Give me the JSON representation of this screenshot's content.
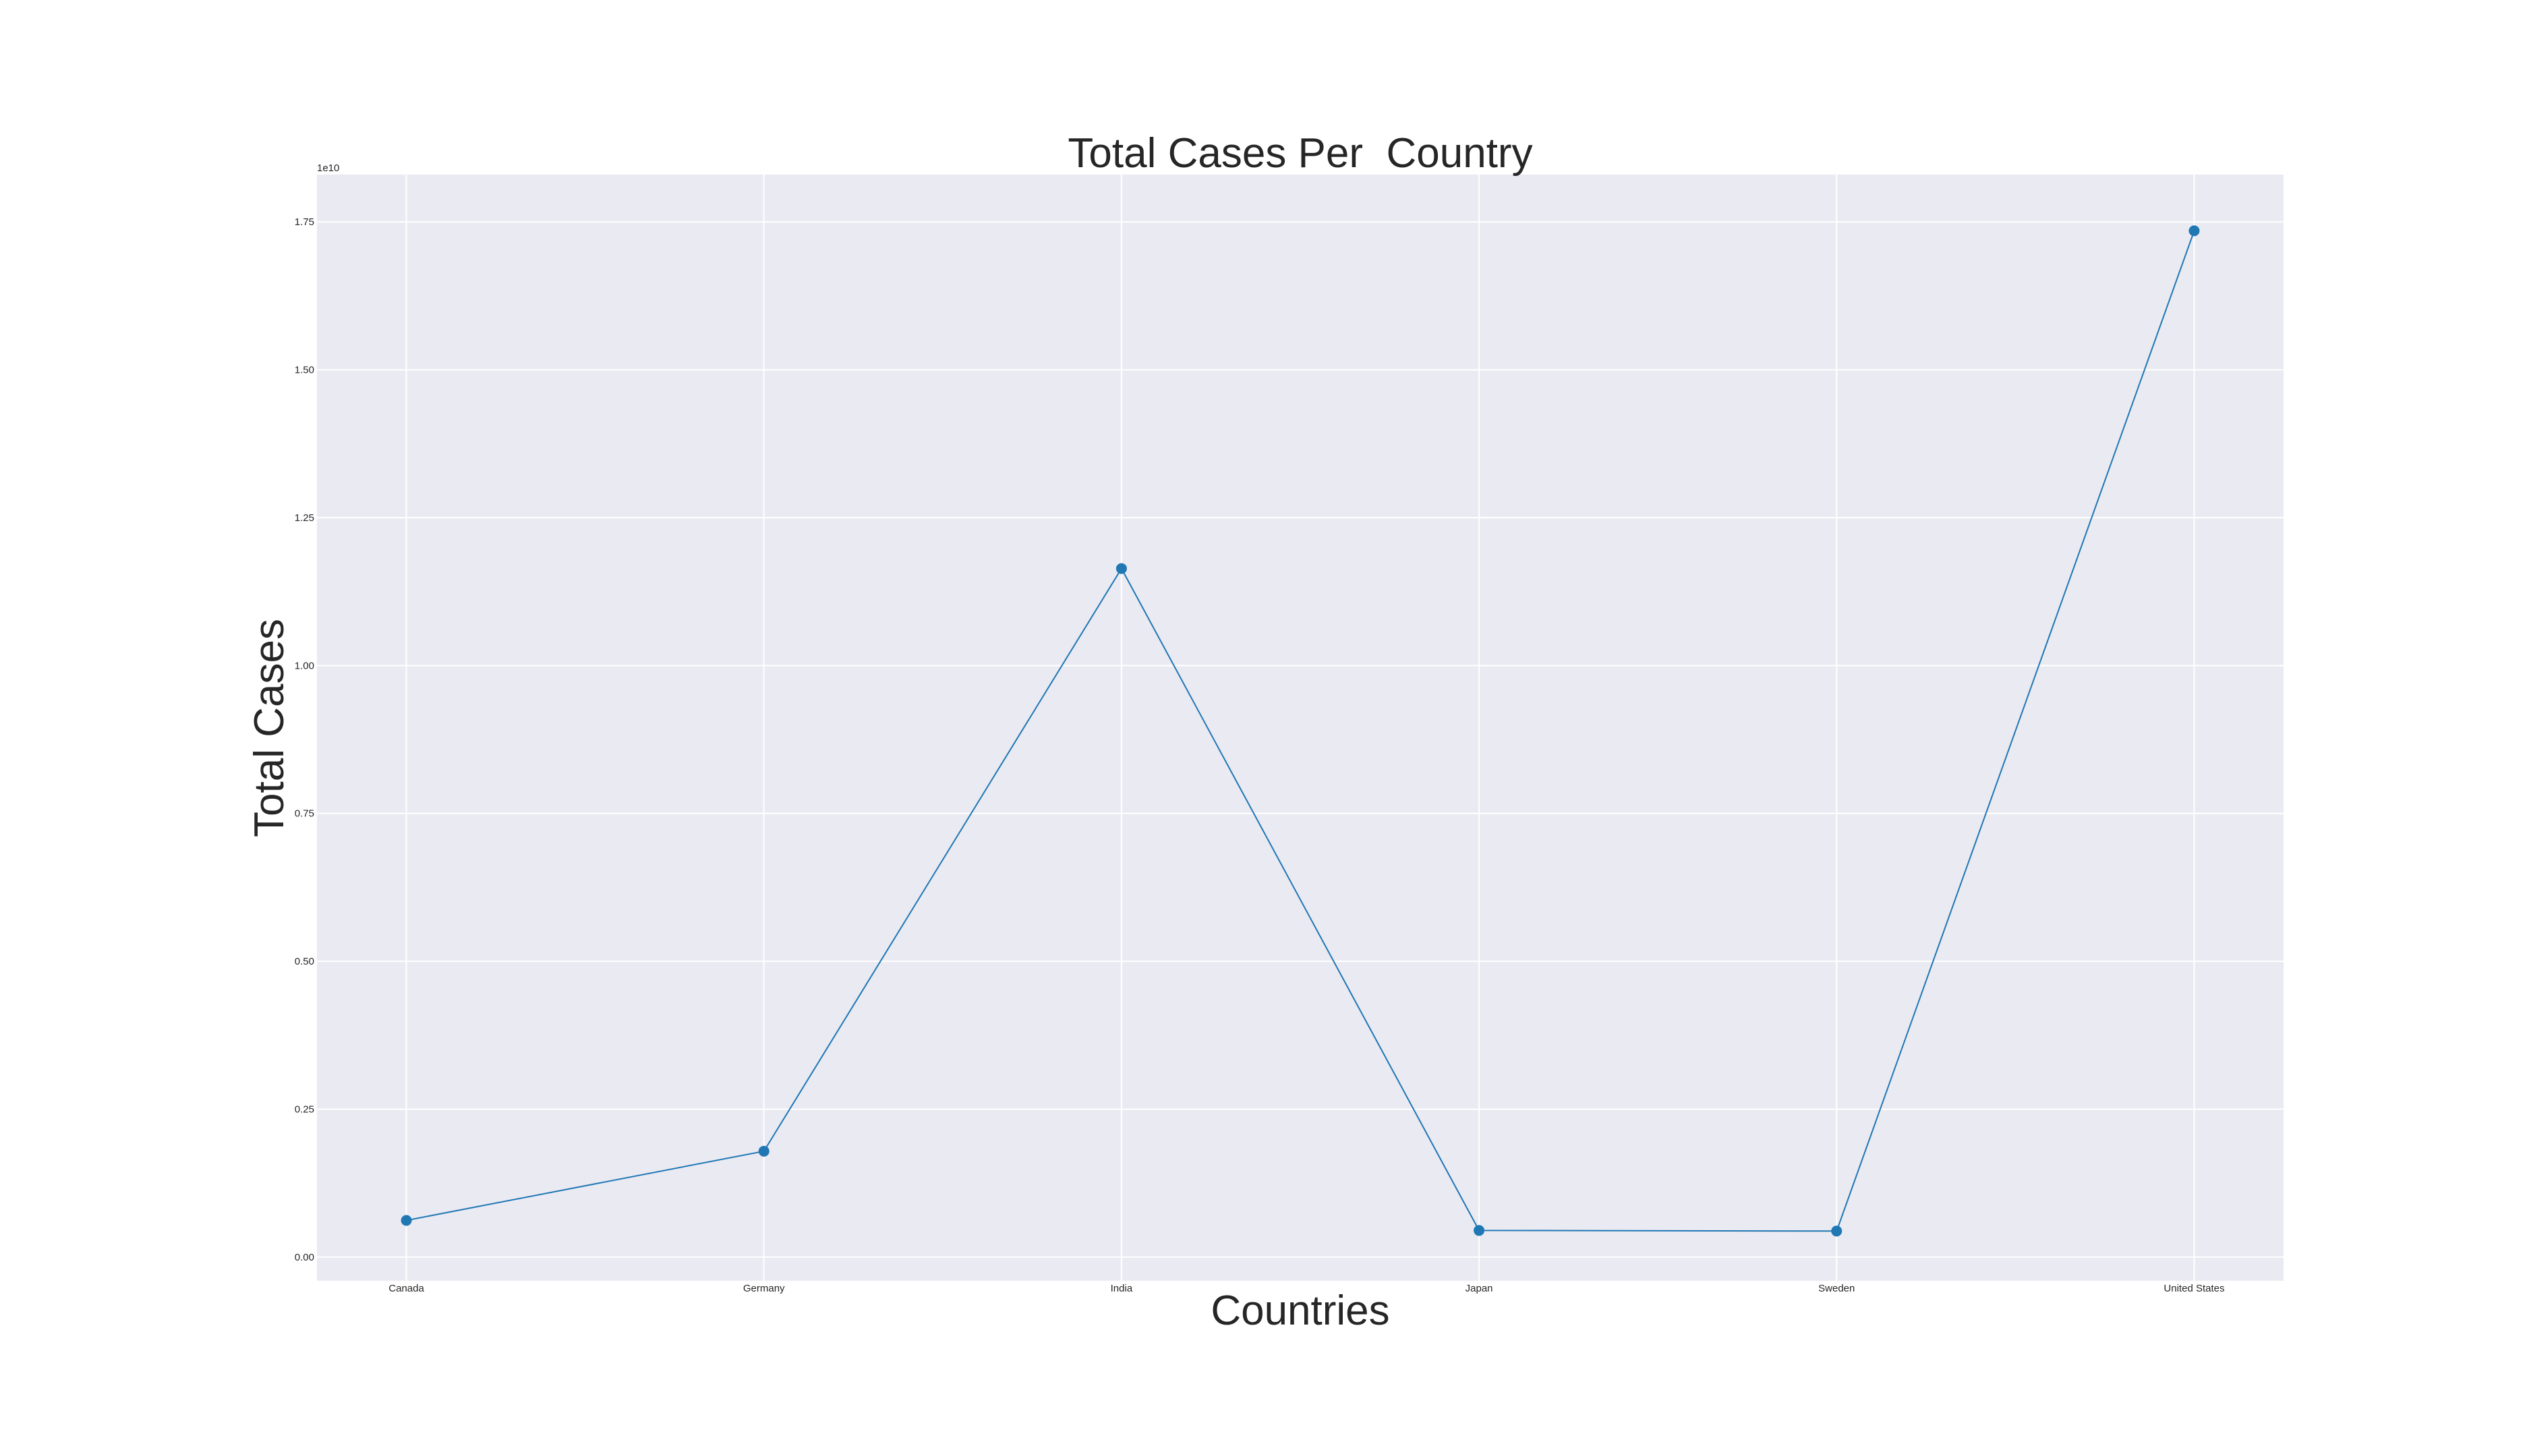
{
  "chart_data": {
    "type": "line",
    "title": "Total Cases Per  Country",
    "xlabel": "Countries",
    "ylabel": "Total Cases",
    "y_offset_label": "1e10",
    "categories": [
      "Canada",
      "Germany",
      "India",
      "Japan",
      "Sweden",
      "United States"
    ],
    "series": [
      {
        "values": [
          620000000,
          1790000000,
          11640000000,
          450000000,
          440000000,
          17350000000
        ]
      }
    ],
    "ylim": [
      -400000000,
      18300000000
    ],
    "y_ticks": [
      0,
      2500000000,
      5000000000,
      7500000000,
      10000000000,
      12500000000,
      15000000000,
      17500000000
    ],
    "y_tick_labels": [
      "0.00",
      "0.25",
      "0.50",
      "0.75",
      "1.00",
      "1.25",
      "1.50",
      "1.75"
    ],
    "grid": true,
    "legend": "none",
    "colors": {
      "series": "#1f77b4",
      "plot_background": "#eaeaf2",
      "grid": "#ffffff",
      "text": "#262626"
    }
  }
}
